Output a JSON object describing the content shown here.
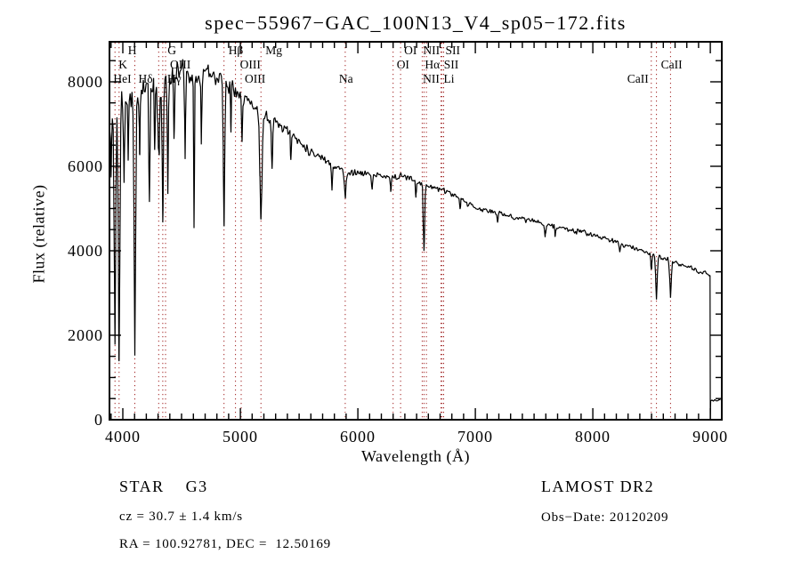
{
  "chart_data": {
    "type": "line",
    "title": "spec−55967−GAC_100N13_V4_sp05−172.fits",
    "xlabel": "Wavelength (Å)",
    "ylabel": "Flux (relative)",
    "xlim": [
      3886,
      9098
    ],
    "ylim": [
      0,
      8947
    ],
    "x_ticks": [
      4000,
      5000,
      6000,
      7000,
      8000,
      9000
    ],
    "y_ticks": [
      0,
      2000,
      4000,
      6000,
      8000
    ],
    "x_minor_step": 100,
    "y_minor_step": 500,
    "grid": false,
    "curve_color": "#000000",
    "marker_line_color": "#a02020",
    "spectral_lines": [
      {
        "label": "HeI",
        "wavelength": 3889,
        "row": 3,
        "dx": 0
      },
      {
        "label": "K",
        "wavelength": 3933,
        "row": 2,
        "dx": 4
      },
      {
        "label": "H",
        "wavelength": 3968,
        "row": 1,
        "dx": 10
      },
      {
        "label": "Hδ",
        "wavelength": 4102,
        "row": 3,
        "dx": 4
      },
      {
        "label": "G",
        "wavelength": 4305,
        "row": 1,
        "dx": 10
      },
      {
        "label": "Hγ",
        "wavelength": 4340,
        "row": 3,
        "dx": 5
      },
      {
        "label": "OIII",
        "wavelength": 4363,
        "row": 2,
        "dx": 5
      },
      {
        "label": "Hβ",
        "wavelength": 4861,
        "row": 1,
        "dx": 5
      },
      {
        "label": "OIII",
        "wavelength": 4959,
        "row": 2,
        "dx": 5
      },
      {
        "label": "OIII",
        "wavelength": 5007,
        "row": 3,
        "dx": 4
      },
      {
        "label": "Mg",
        "wavelength": 5175,
        "row": 1,
        "dx": 5
      },
      {
        "label": "Na",
        "wavelength": 5893,
        "row": 3,
        "dx": -7
      },
      {
        "label": "OI",
        "wavelength": 6300,
        "row": 2,
        "dx": 4
      },
      {
        "label": "OI",
        "wavelength": 6364,
        "row": 1,
        "dx": 4
      },
      {
        "label": "NII",
        "wavelength": 6548,
        "row": 1,
        "dx": 1
      },
      {
        "label": "Hα",
        "wavelength": 6563,
        "row": 2,
        "dx": 1
      },
      {
        "label": "NII",
        "wavelength": 6584,
        "row": 3,
        "dx": -4
      },
      {
        "label": "Li",
        "wavelength": 6708,
        "row": 3,
        "dx": 3
      },
      {
        "label": "SII",
        "wavelength": 6717,
        "row": 2,
        "dx": 2
      },
      {
        "label": "SII",
        "wavelength": 6731,
        "row": 1,
        "dx": 2
      },
      {
        "label": "CaII",
        "wavelength": 8498,
        "row": 3,
        "dx": -27
      },
      {
        "label": "CaII",
        "wavelength": 8542,
        "row": 2,
        "dx": 5
      },
      {
        "label": "",
        "wavelength": 8662,
        "row": 3,
        "dx": 0
      }
    ],
    "continuum": [
      [
        3886,
        6900
      ],
      [
        3920,
        7300
      ],
      [
        3960,
        7500
      ],
      [
        4020,
        7600
      ],
      [
        4100,
        7700
      ],
      [
        4200,
        7850
      ],
      [
        4300,
        7950
      ],
      [
        4400,
        8150
      ],
      [
        4500,
        8250
      ],
      [
        4600,
        8150
      ],
      [
        4700,
        8250
      ],
      [
        4800,
        8100
      ],
      [
        4900,
        7950
      ],
      [
        5000,
        7750
      ],
      [
        5100,
        7450
      ],
      [
        5200,
        7200
      ],
      [
        5300,
        7050
      ],
      [
        5400,
        6850
      ],
      [
        5500,
        6600
      ],
      [
        5600,
        6350
      ],
      [
        5700,
        6200
      ],
      [
        5800,
        6000
      ],
      [
        5900,
        5870
      ],
      [
        6000,
        5850
      ],
      [
        6100,
        5800
      ],
      [
        6200,
        5760
      ],
      [
        6300,
        5730
      ],
      [
        6400,
        5760
      ],
      [
        6500,
        5660
      ],
      [
        6600,
        5550
      ],
      [
        6700,
        5450
      ],
      [
        6800,
        5350
      ],
      [
        6900,
        5180
      ],
      [
        7000,
        5000
      ],
      [
        7100,
        4950
      ],
      [
        7200,
        4880
      ],
      [
        7300,
        4820
      ],
      [
        7400,
        4760
      ],
      [
        7500,
        4690
      ],
      [
        7600,
        4620
      ],
      [
        7700,
        4560
      ],
      [
        7800,
        4500
      ],
      [
        7900,
        4440
      ],
      [
        8000,
        4380
      ],
      [
        8100,
        4290
      ],
      [
        8200,
        4200
      ],
      [
        8300,
        4110
      ],
      [
        8400,
        4020
      ],
      [
        8500,
        3930
      ],
      [
        8600,
        3830
      ],
      [
        8700,
        3730
      ],
      [
        8800,
        3620
      ],
      [
        8900,
        3510
      ],
      [
        9000,
        3420
      ]
    ],
    "absorption_lines": [
      [
        3900,
        5900,
        6
      ],
      [
        3933,
        1900,
        9
      ],
      [
        3968,
        1350,
        9
      ],
      [
        4010,
        5600,
        5
      ],
      [
        4045,
        6200,
        5
      ],
      [
        4102,
        1400,
        9
      ],
      [
        4144,
        6200,
        5
      ],
      [
        4226,
        5100,
        6
      ],
      [
        4271,
        6300,
        5
      ],
      [
        4305,
        6100,
        10
      ],
      [
        4340,
        4750,
        7
      ],
      [
        4383,
        5400,
        6
      ],
      [
        4435,
        6600,
        5
      ],
      [
        4530,
        6400,
        5
      ],
      [
        4606,
        4500,
        5
      ],
      [
        4668,
        6500,
        5
      ],
      [
        4861,
        4600,
        8
      ],
      [
        4920,
        6900,
        4
      ],
      [
        5015,
        6600,
        5
      ],
      [
        5175,
        4750,
        12
      ],
      [
        5270,
        6100,
        7
      ],
      [
        5430,
        6100,
        5
      ],
      [
        5780,
        5450,
        5
      ],
      [
        5893,
        5250,
        9
      ],
      [
        6122,
        5450,
        5
      ],
      [
        6280,
        5430,
        5
      ],
      [
        6495,
        5300,
        5
      ],
      [
        6563,
        3950,
        8
      ],
      [
        6870,
        4950,
        6
      ],
      [
        7190,
        4700,
        5
      ],
      [
        7594,
        4400,
        7
      ],
      [
        7680,
        4350,
        5
      ],
      [
        8230,
        3950,
        5
      ],
      [
        8498,
        3550,
        7
      ],
      [
        8542,
        2850,
        9
      ],
      [
        8662,
        2900,
        9
      ]
    ],
    "noise_segments": [
      [
        3886,
        3990,
        420
      ],
      [
        3990,
        4250,
        360
      ],
      [
        4250,
        4700,
        320
      ],
      [
        4700,
        5000,
        260
      ],
      [
        5000,
        5300,
        210
      ],
      [
        5300,
        5600,
        150
      ],
      [
        5600,
        6000,
        110
      ],
      [
        6000,
        6600,
        100
      ],
      [
        6600,
        7200,
        90
      ],
      [
        7200,
        8000,
        80
      ],
      [
        8000,
        9000,
        72
      ],
      [
        9000,
        9099,
        25
      ]
    ],
    "tail": {
      "drop_wavelength": 9000,
      "tail_flux": 460
    }
  },
  "annotations": {
    "class_line": "STAR    G3",
    "cz_line": "cz = 30.7 ± 1.4 km/s",
    "radec_line": "RA = 100.92781, DEC =  12.50169",
    "survey": "LAMOST DR2",
    "obs_date": "Obs−Date: 20120209"
  }
}
